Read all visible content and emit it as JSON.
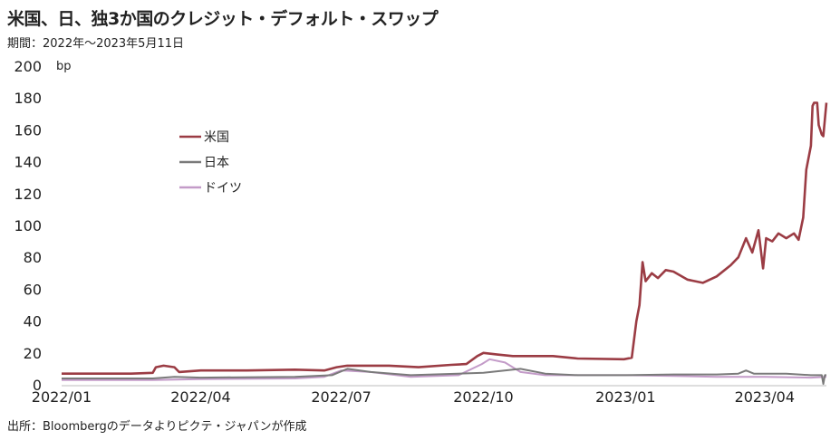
{
  "chart_data": {
    "type": "line",
    "title": "米国、日、独3か国のクレジット・デフォルト・スワップ",
    "subtitle": "期間：2022年～2023年5月11日",
    "source": "出所：Bloombergのデータよりピクテ・ジャパンが作成",
    "ylabel": "bp",
    "ylim": [
      0,
      200
    ],
    "yticks": [
      0,
      20,
      40,
      60,
      80,
      100,
      120,
      140,
      160,
      180,
      200
    ],
    "xlim": [
      "2022-01-01",
      "2023-05-11"
    ],
    "xticks": [
      {
        "date": "2022-01-01",
        "label": "2022/01"
      },
      {
        "date": "2022-04-01",
        "label": "2022/04"
      },
      {
        "date": "2022-07-01",
        "label": "2022/07"
      },
      {
        "date": "2022-10-01",
        "label": "2022/10"
      },
      {
        "date": "2023-01-01",
        "label": "2023/01"
      },
      {
        "date": "2023-04-01",
        "label": "2023/04"
      }
    ],
    "grid": false,
    "legend": "upper-left",
    "series": [
      {
        "name": "米国",
        "color": "#9b3c44",
        "points": [
          [
            "2022-01-01",
            7
          ],
          [
            "2022-02-15",
            7
          ],
          [
            "2022-03-01",
            7.5
          ],
          [
            "2022-03-03",
            11
          ],
          [
            "2022-03-08",
            12
          ],
          [
            "2022-03-15",
            11
          ],
          [
            "2022-03-18",
            8
          ],
          [
            "2022-04-01",
            9
          ],
          [
            "2022-05-01",
            9
          ],
          [
            "2022-06-01",
            9.5
          ],
          [
            "2022-06-20",
            9
          ],
          [
            "2022-06-28",
            11
          ],
          [
            "2022-07-05",
            12
          ],
          [
            "2022-08-01",
            12
          ],
          [
            "2022-08-20",
            11
          ],
          [
            "2022-09-10",
            12.5
          ],
          [
            "2022-09-20",
            13
          ],
          [
            "2022-09-27",
            18
          ],
          [
            "2022-10-01",
            20
          ],
          [
            "2022-10-10",
            19
          ],
          [
            "2022-10-20",
            18
          ],
          [
            "2022-11-15",
            18
          ],
          [
            "2022-12-01",
            16.5
          ],
          [
            "2022-12-31",
            16
          ],
          [
            "2023-01-05",
            17
          ],
          [
            "2023-01-08",
            40
          ],
          [
            "2023-01-10",
            50
          ],
          [
            "2023-01-12",
            77
          ],
          [
            "2023-01-14",
            65
          ],
          [
            "2023-01-18",
            70
          ],
          [
            "2023-01-22",
            67
          ],
          [
            "2023-01-27",
            72
          ],
          [
            "2023-02-01",
            71
          ],
          [
            "2023-02-10",
            66
          ],
          [
            "2023-02-20",
            64
          ],
          [
            "2023-03-01",
            68
          ],
          [
            "2023-03-10",
            75
          ],
          [
            "2023-03-15",
            80
          ],
          [
            "2023-03-20",
            92
          ],
          [
            "2023-03-24",
            83
          ],
          [
            "2023-03-28",
            97
          ],
          [
            "2023-03-31",
            73
          ],
          [
            "2023-04-02",
            92
          ],
          [
            "2023-04-06",
            90
          ],
          [
            "2023-04-10",
            95
          ],
          [
            "2023-04-15",
            92
          ],
          [
            "2023-04-20",
            95
          ],
          [
            "2023-04-23",
            91
          ],
          [
            "2023-04-26",
            105
          ],
          [
            "2023-04-28",
            135
          ],
          [
            "2023-05-01",
            150
          ],
          [
            "2023-05-02",
            175
          ],
          [
            "2023-05-03",
            177
          ],
          [
            "2023-05-05",
            177
          ],
          [
            "2023-05-06",
            163
          ],
          [
            "2023-05-08",
            157
          ],
          [
            "2023-05-09",
            156
          ],
          [
            "2023-05-11",
            177
          ]
        ]
      },
      {
        "name": "日本",
        "color": "#7a7a7a",
        "points": [
          [
            "2022-01-01",
            4
          ],
          [
            "2022-03-01",
            4
          ],
          [
            "2022-03-15",
            5
          ],
          [
            "2022-04-01",
            4.5
          ],
          [
            "2022-06-01",
            5
          ],
          [
            "2022-06-25",
            6
          ],
          [
            "2022-07-05",
            10
          ],
          [
            "2022-07-20",
            8
          ],
          [
            "2022-08-15",
            6
          ],
          [
            "2022-10-01",
            7.5
          ],
          [
            "2022-10-25",
            10
          ],
          [
            "2022-11-10",
            7
          ],
          [
            "2022-12-01",
            6
          ],
          [
            "2023-01-01",
            6
          ],
          [
            "2023-02-01",
            6.5
          ],
          [
            "2023-03-01",
            6.5
          ],
          [
            "2023-03-15",
            7
          ],
          [
            "2023-03-20",
            9
          ],
          [
            "2023-03-25",
            7
          ],
          [
            "2023-04-15",
            7
          ],
          [
            "2023-05-01",
            6
          ],
          [
            "2023-05-08",
            6
          ],
          [
            "2023-05-09",
            0.5
          ],
          [
            "2023-05-10",
            6
          ],
          [
            "2023-05-11",
            6
          ]
        ]
      },
      {
        "name": "ドイツ",
        "color": "#c39bc8",
        "points": [
          [
            "2022-01-01",
            3
          ],
          [
            "2022-03-01",
            3
          ],
          [
            "2022-04-01",
            3.5
          ],
          [
            "2022-06-01",
            4
          ],
          [
            "2022-06-20",
            5
          ],
          [
            "2022-07-01",
            9
          ],
          [
            "2022-07-20",
            8
          ],
          [
            "2022-08-15",
            5
          ],
          [
            "2022-09-15",
            6
          ],
          [
            "2022-09-30",
            13
          ],
          [
            "2022-10-05",
            16
          ],
          [
            "2022-10-15",
            14
          ],
          [
            "2022-10-25",
            8
          ],
          [
            "2022-11-10",
            6
          ],
          [
            "2022-12-01",
            6
          ],
          [
            "2023-01-01",
            6
          ],
          [
            "2023-02-01",
            5.5
          ],
          [
            "2023-03-01",
            5
          ],
          [
            "2023-04-01",
            5
          ],
          [
            "2023-05-01",
            4.5
          ],
          [
            "2023-05-11",
            5
          ]
        ]
      }
    ]
  }
}
